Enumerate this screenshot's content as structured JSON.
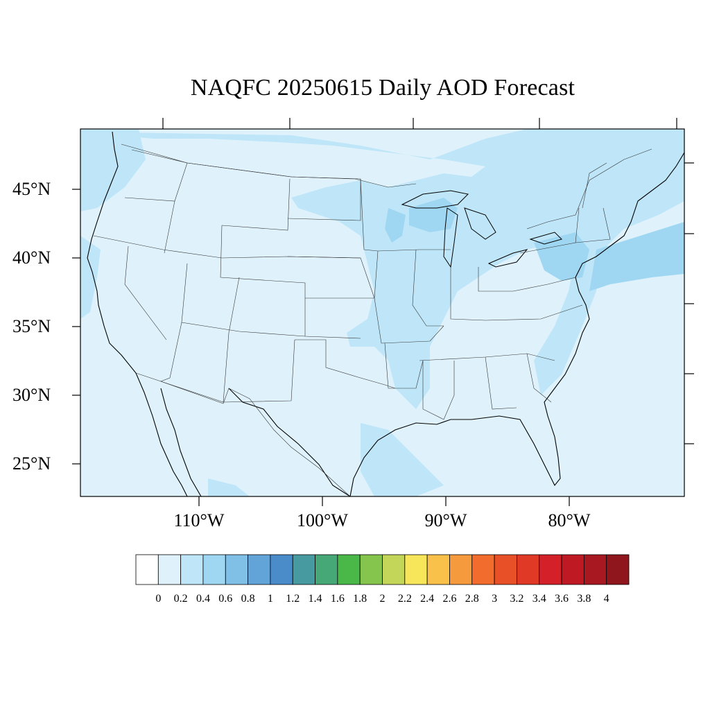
{
  "title": "NAQFC 20250615 Daily AOD Forecast",
  "lat_ticks": [
    "45°N",
    "40°N",
    "35°N",
    "30°N",
    "25°N"
  ],
  "lon_ticks": [
    "110°W",
    "100°W",
    "90°W",
    "80°W"
  ],
  "colorbar": {
    "labels": [
      "0",
      "0.2",
      "0.4",
      "0.6",
      "0.8",
      "1",
      "1.2",
      "1.4",
      "1.6",
      "1.8",
      "2",
      "2.2",
      "2.4",
      "2.6",
      "2.8",
      "3",
      "3.2",
      "3.4",
      "3.6",
      "3.8",
      "4"
    ],
    "colors": [
      "#ffffff",
      "#dff2fb",
      "#bfe6f8",
      "#9fd7f3",
      "#80bfe6",
      "#63a4d8",
      "#4a8cca",
      "#479aa0",
      "#47a877",
      "#4ab848",
      "#86c54d",
      "#c4d65a",
      "#f7e65a",
      "#f9c04a",
      "#f69a3e",
      "#f26c2e",
      "#e85028",
      "#e03a26",
      "#d42028",
      "#bf1a24",
      "#a81820",
      "#8f161c"
    ]
  },
  "colors": {
    "background_aod": "#dff2fb",
    "aod_02_04": "#bfe6f8",
    "aod_04_06": "#9fd7f3",
    "border": "#000000"
  }
}
